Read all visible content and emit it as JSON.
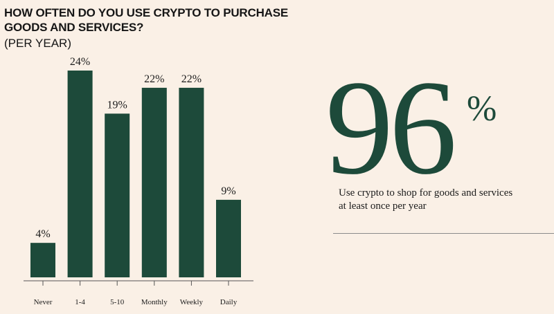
{
  "header": {
    "title": "HOW OFTEN DO YOU USE CRYPTO TO PURCHASE GOODS AND SERVICES?",
    "subtitle": "(PER YEAR)"
  },
  "stat": {
    "value": "96",
    "unit": "%",
    "caption": "Use crypto to shop for goods and services at least once per year"
  },
  "colors": {
    "bar": "#1d4a3a",
    "background": "#faf0e6",
    "axis": "#555555"
  },
  "chart_data": {
    "type": "bar",
    "title": "HOW OFTEN DO YOU USE CRYPTO TO PURCHASE GOODS AND SERVICES?",
    "subtitle": "(PER YEAR)",
    "categories": [
      "Never",
      "1-4",
      "5-10",
      "Monthly",
      "Weekly",
      "Daily"
    ],
    "values": [
      4,
      24,
      19,
      22,
      22,
      9
    ],
    "value_labels": [
      "4%",
      "24%",
      "19%",
      "22%",
      "22%",
      "9%"
    ],
    "xlabel": "",
    "ylabel": "",
    "ylim": [
      0,
      24
    ],
    "grid": false,
    "legend": "none"
  }
}
